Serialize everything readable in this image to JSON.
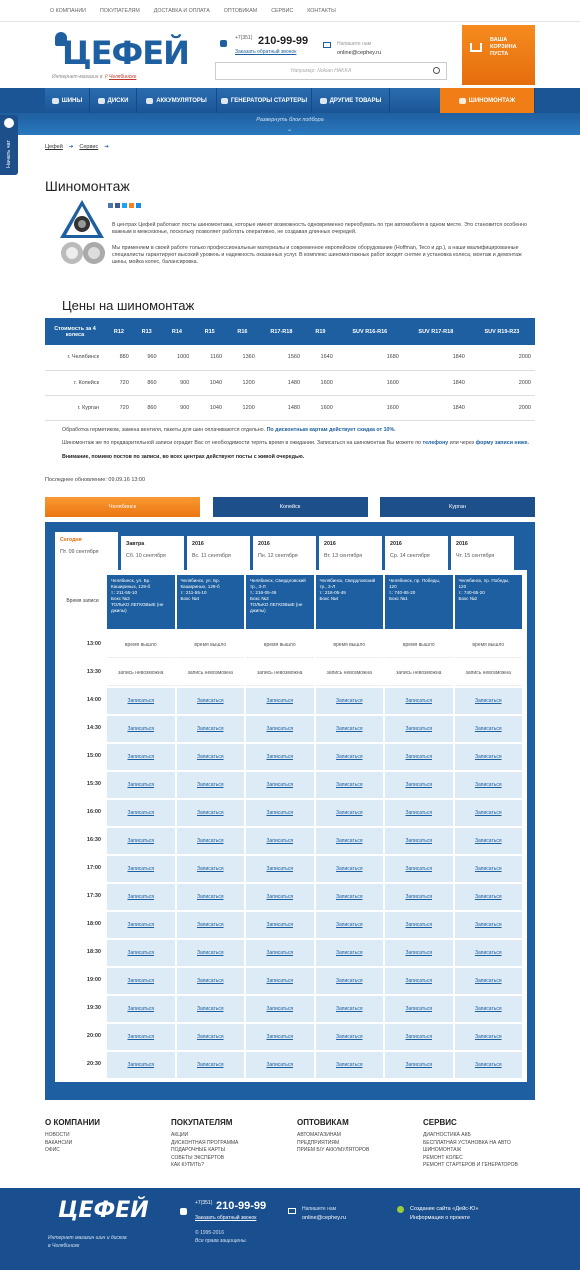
{
  "topnav": [
    "О КОМПАНИИ",
    "ПОКУПАТЕЛЯМ",
    "ДОСТАВКА И ОПЛАТА",
    "ОПТОВИКАМ",
    "СЕРВИС",
    "КОНТАКТЫ"
  ],
  "header": {
    "logo": "ЦЕФЕЙ",
    "tagline": "Интернет-магазин в",
    "city": "Челябинске",
    "phone_code": "+7(351)",
    "phone": "210-99-99",
    "callback": "Заказать обратный звонок",
    "write": "Напишите нам",
    "email": "online@cephey.ru",
    "search_placeholder": "Например: Nokian HAKKA",
    "cart": [
      "ВАША",
      "КОРЗИНА",
      "ПУСТА"
    ]
  },
  "mainnav": [
    "ШИНЫ",
    "ДИСКИ",
    "АККУМУЛЯТОРЫ",
    "ГЕНЕРАТОРЫ СТАРТЕРЫ",
    "ДРУГИЕ ТОВАРЫ",
    "ШИНОМОНТАЖ"
  ],
  "expand": "Развернуть блок подбора",
  "chat": "Начать чат",
  "breadcrumbs": [
    "Цефей",
    "Сервис"
  ],
  "title": "Шиномонтаж",
  "intro": [
    "В центрах Цефей работают посты шиномонтажа, которые имеют возможность одновременно переобувать по три автомобиля в одном месте. Это становится особенно важным в межсезонье, поскольку позволяет работать оперативно, не создавая длинных очередей.",
    "Мы применяем в своей работе только профессиональные материалы и современное европейское оборудование (Hoffman, Teco и др.), а наши квалифицированные специалисты гарантируют высокий уровень и надежность оказанных услуг. В комплекс шиномонтажных работ входят снятие и установка колеса, монтаж и демонтаж шины, мойка колес, балансировка."
  ],
  "prices": {
    "title": "Цены на шиномонтаж",
    "header": [
      "Стоимость за 4 колеса",
      "R12",
      "R13",
      "R14",
      "R15",
      "R16",
      "R17-R18",
      "R19",
      "SUV R16-R16",
      "SUV R17-R18",
      "SUV R19-R23"
    ],
    "rows": [
      [
        "г. Челябинск",
        880,
        960,
        1000,
        1160,
        1360,
        1560,
        1640,
        1680,
        1840,
        2000
      ],
      [
        "г. Копейск",
        720,
        860,
        900,
        1040,
        1200,
        1480,
        1600,
        1600,
        1840,
        2000
      ],
      [
        "г. Курган",
        720,
        860,
        900,
        1040,
        1200,
        1480,
        1600,
        1600,
        1840,
        2000
      ]
    ]
  },
  "notes": [
    [
      {
        "t": "Обработка герметиком, замена вентиля, пакеты для шин оплачиваются отдельно. "
      },
      {
        "t": "По дисконтным картам действует скидка от 10%.",
        "link": true
      }
    ],
    [
      {
        "t": "Шиномонтаж же по предварительной записи оградит Вас от необходимости терять время в ожидании. Записаться на шиномонтаж Вы можете по "
      },
      {
        "t": "телефону",
        "link": true
      },
      {
        "t": " или через "
      },
      {
        "t": "форму записи ниже.",
        "link": true
      }
    ],
    [
      {
        "t": "Внимание, помимо постов по записи, во всех центрах действуют посты с живой очередью.",
        "bold": true
      }
    ]
  ],
  "updated": "Последнее обновление: 09.09.16 13:00",
  "cities": [
    "Челябинск",
    "Копейск",
    "Курган"
  ],
  "days": [
    [
      "Сегодня",
      "Пт. 09 сентября"
    ],
    [
      "Завтра",
      "Сб. 10 сентября"
    ],
    [
      "2016",
      "Вс. 11 сентября"
    ],
    [
      "2016",
      "Пн. 12 сентября"
    ],
    [
      "2016",
      "Вт. 13 сентября"
    ],
    [
      "2016",
      "Ср. 14 сентября"
    ],
    [
      "2016",
      "Чт. 15 сентября"
    ]
  ],
  "schedule": {
    "time_header": "Время записи",
    "posts": [
      [
        "Челябинск, ул. Бр. Кашириных, 129-б",
        "т.: 211-55-10",
        "Бокс №3",
        "ТОЛЬКО ЛЕГКОВЫЕ (не джипы)"
      ],
      [
        "Челябинск, ул. Бр. Кашириных, 129-б",
        "т.: 211-55-10",
        "Бокс №4"
      ],
      [
        "Челябинск, Свердловский тр., 3-Л",
        "т.: 216-05-49",
        "Бокс №3",
        "ТОЛЬКО ЛЕГКОВЫЕ (не джипы)"
      ],
      [
        "Челябинск, Свердловский тр., 3-Л",
        "т.: 216-05-49",
        "Бокс №4"
      ],
      [
        "Челябинск, пр. Победы, 120",
        "т.: 740-65-20",
        "Бокс №1"
      ],
      [
        "Челябинск, пр. Победы, 120",
        "т.: 740-65-20",
        "Бокс №2"
      ]
    ],
    "rows": [
      {
        "time": "13:00",
        "cells": [
          "время вышло",
          "время вышло",
          "время вышло",
          "время вышло",
          "время вышло",
          "время вышло"
        ]
      },
      {
        "time": "13:30",
        "cells": [
          "запись невозможна",
          "запись невозможна",
          "запись невозможна",
          "запись невозможна",
          "запись невозможна",
          "запись невозможна"
        ]
      },
      {
        "time": "14:00",
        "cells": [
          "Записаться",
          "Записаться",
          "Записаться",
          "Записаться",
          "Записаться",
          "Записаться"
        ]
      },
      {
        "time": "14:30",
        "cells": [
          "Записаться",
          "Записаться",
          "Записаться",
          "Записаться",
          "Записаться",
          "Записаться"
        ]
      },
      {
        "time": "15:00",
        "cells": [
          "Записаться",
          "Записаться",
          "Записаться",
          "Записаться",
          "Записаться",
          "Записаться"
        ]
      },
      {
        "time": "15:30",
        "cells": [
          "Записаться",
          "Записаться",
          "Записаться",
          "Записаться",
          "Записаться",
          "Записаться"
        ]
      },
      {
        "time": "16:00",
        "cells": [
          "Записаться",
          "Записаться",
          "Записаться",
          "Записаться",
          "Записаться",
          "Записаться"
        ]
      },
      {
        "time": "16:30",
        "cells": [
          "Записаться",
          "Записаться",
          "Записаться",
          "Записаться",
          "Записаться",
          "Записаться"
        ]
      },
      {
        "time": "17:00",
        "cells": [
          "Записаться",
          "Записаться",
          "Записаться",
          "Записаться",
          "Записаться",
          "Записаться"
        ]
      },
      {
        "time": "17:30",
        "cells": [
          "Записаться",
          "Записаться",
          "Записаться",
          "Записаться",
          "Записаться",
          "Записаться"
        ]
      },
      {
        "time": "18:00",
        "cells": [
          "Записаться",
          "Записаться",
          "Записаться",
          "Записаться",
          "Записаться",
          "Записаться"
        ]
      },
      {
        "time": "18:30",
        "cells": [
          "Записаться",
          "Записаться",
          "Записаться",
          "Записаться",
          "Записаться",
          "Записаться"
        ]
      },
      {
        "time": "19:00",
        "cells": [
          "Записаться",
          "Записаться",
          "Записаться",
          "Записаться",
          "Записаться",
          "Записаться"
        ]
      },
      {
        "time": "19:30",
        "cells": [
          "Записаться",
          "Записаться",
          "Записаться",
          "Записаться",
          "Записаться",
          "Записаться"
        ]
      },
      {
        "time": "20:00",
        "cells": [
          "Записаться",
          "Записаться",
          "Записаться",
          "Записаться",
          "Записаться",
          "Записаться"
        ]
      },
      {
        "time": "20:30",
        "cells": [
          "Записаться",
          "Записаться",
          "Записаться",
          "Записаться",
          "Записаться",
          "Записаться"
        ]
      }
    ]
  },
  "footer": {
    "columns": [
      {
        "title": "О КОМПАНИИ",
        "items": [
          "НОВОСТИ",
          "ВАКАНСИИ",
          "ОФИС"
        ]
      },
      {
        "title": "ПОКУПАТЕЛЯМ",
        "items": [
          "АКЦИИ",
          "ДИСКОНТНАЯ ПРОГРАММА",
          "ПОДАРОЧНЫЕ КАРТЫ",
          "СОВЕТЫ ЭКСПЕРТОВ",
          "КАК КУПИТЬ?"
        ]
      },
      {
        "title": "ОПТОВИКАМ",
        "items": [
          "АВТОМАГАЗИНАМ",
          "ПРЕДПРИЯТИЯМ",
          "ПРИЕМ Б/У АККУМУЛЯТОРОВ"
        ]
      },
      {
        "title": "СЕРВИС",
        "items": [
          "ДИАГНОСТИКА АКБ",
          "БЕСПЛАТНАЯ УСТАНОВКА НА АВТО",
          "ШИНОМОНТАЖ",
          "РЕМОНТ КОЛЕС",
          "РЕМОНТ СТАРТЕРОВ И ГЕНЕРАТОРОВ"
        ]
      }
    ],
    "logo": "ЦЕФЕЙ",
    "tagline": [
      "Интернет магазин шин и дисков",
      "в Челябинске"
    ],
    "phone_code": "+7(351)",
    "phone": "210-99-99",
    "callback": "Заказать обратный звонок",
    "copyright": "© 1995-2016",
    "rights": "Все права защищены.",
    "write": "Напишите нам",
    "email": "online@cephey.ru",
    "dev": "Создание сайта «Дейс-Ю»",
    "about": "Информация о проекте"
  }
}
